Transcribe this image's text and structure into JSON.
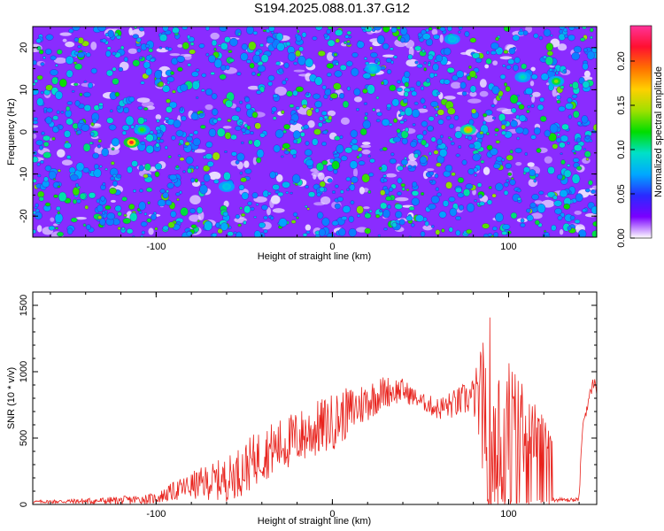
{
  "title": "S194.2025.088.01.37.G12",
  "colors": {
    "background": "#ffffff",
    "snr_line": "#e8231d",
    "axis": "#000000"
  },
  "chart_data": [
    {
      "type": "heatmap",
      "name": "spectrogram",
      "xlabel": "Height of straight line (km)",
      "ylabel": "Frequency (Hz)",
      "xlim": [
        -170,
        150
      ],
      "ylim": [
        -25,
        25
      ],
      "x_ticks": [
        -100,
        0,
        100
      ],
      "y_ticks": [
        -20,
        -10,
        0,
        10,
        20
      ],
      "colorbar": {
        "label": "Normalized spectral amplitude",
        "range": [
          0.0,
          0.24
        ],
        "ticks": [
          0.0,
          0.05,
          0.1,
          0.15,
          0.2
        ],
        "tick_labels": [
          "0.00",
          "0.05",
          "0.10",
          "0.15",
          "0.20"
        ],
        "colormap": [
          "#ffffff",
          "#7a00ff",
          "#2a2aff",
          "#00a8ff",
          "#00e0c8",
          "#00dd00",
          "#a0e000",
          "#ffd000",
          "#ff7000",
          "#ff1030",
          "#ff3399"
        ]
      },
      "hotspots": [
        {
          "x": -114,
          "y": -2.5,
          "value": 0.21
        },
        {
          "x": -108,
          "y": 0.5,
          "value": 0.13
        },
        {
          "x": 77,
          "y": 0.5,
          "value": 0.18
        },
        {
          "x": 127,
          "y": 12,
          "value": 0.14
        },
        {
          "x": 108,
          "y": 13,
          "value": 0.1
        },
        {
          "x": 23,
          "y": 15,
          "value": 0.09
        },
        {
          "x": 68,
          "y": 22,
          "value": 0.08
        },
        {
          "x": -60,
          "y": -13,
          "value": 0.08
        }
      ],
      "background_level": 0.04
    },
    {
      "type": "line",
      "name": "snr",
      "xlabel": "Height of straight line (km)",
      "ylabel": "SNR (10 * v/v)",
      "xlim": [
        -170,
        150
      ],
      "ylim": [
        0,
        1600
      ],
      "x_ticks": [
        -100,
        0,
        100
      ],
      "y_ticks": [
        0,
        500,
        1000,
        1500
      ],
      "envelope": {
        "x": [
          -170,
          -140,
          -120,
          -100,
          -90,
          -80,
          -70,
          -60,
          -50,
          -40,
          -30,
          -20,
          -10,
          0,
          10,
          20,
          30,
          40,
          50,
          60,
          70,
          80,
          88,
          100,
          110,
          120,
          128,
          132,
          140,
          142,
          148,
          150
        ],
        "y": [
          20,
          25,
          30,
          45,
          100,
          140,
          170,
          190,
          270,
          380,
          440,
          500,
          560,
          620,
          700,
          780,
          850,
          860,
          780,
          720,
          760,
          820,
          700,
          580,
          560,
          500,
          470,
          30,
          60,
          600,
          920,
          880
        ]
      },
      "noise_amplitude": {
        "x": [
          -170,
          -100,
          -50,
          0,
          50,
          80,
          90,
          110,
          130,
          150
        ],
        "y": [
          10,
          40,
          200,
          220,
          60,
          140,
          800,
          300,
          20,
          50
        ]
      }
    }
  ]
}
